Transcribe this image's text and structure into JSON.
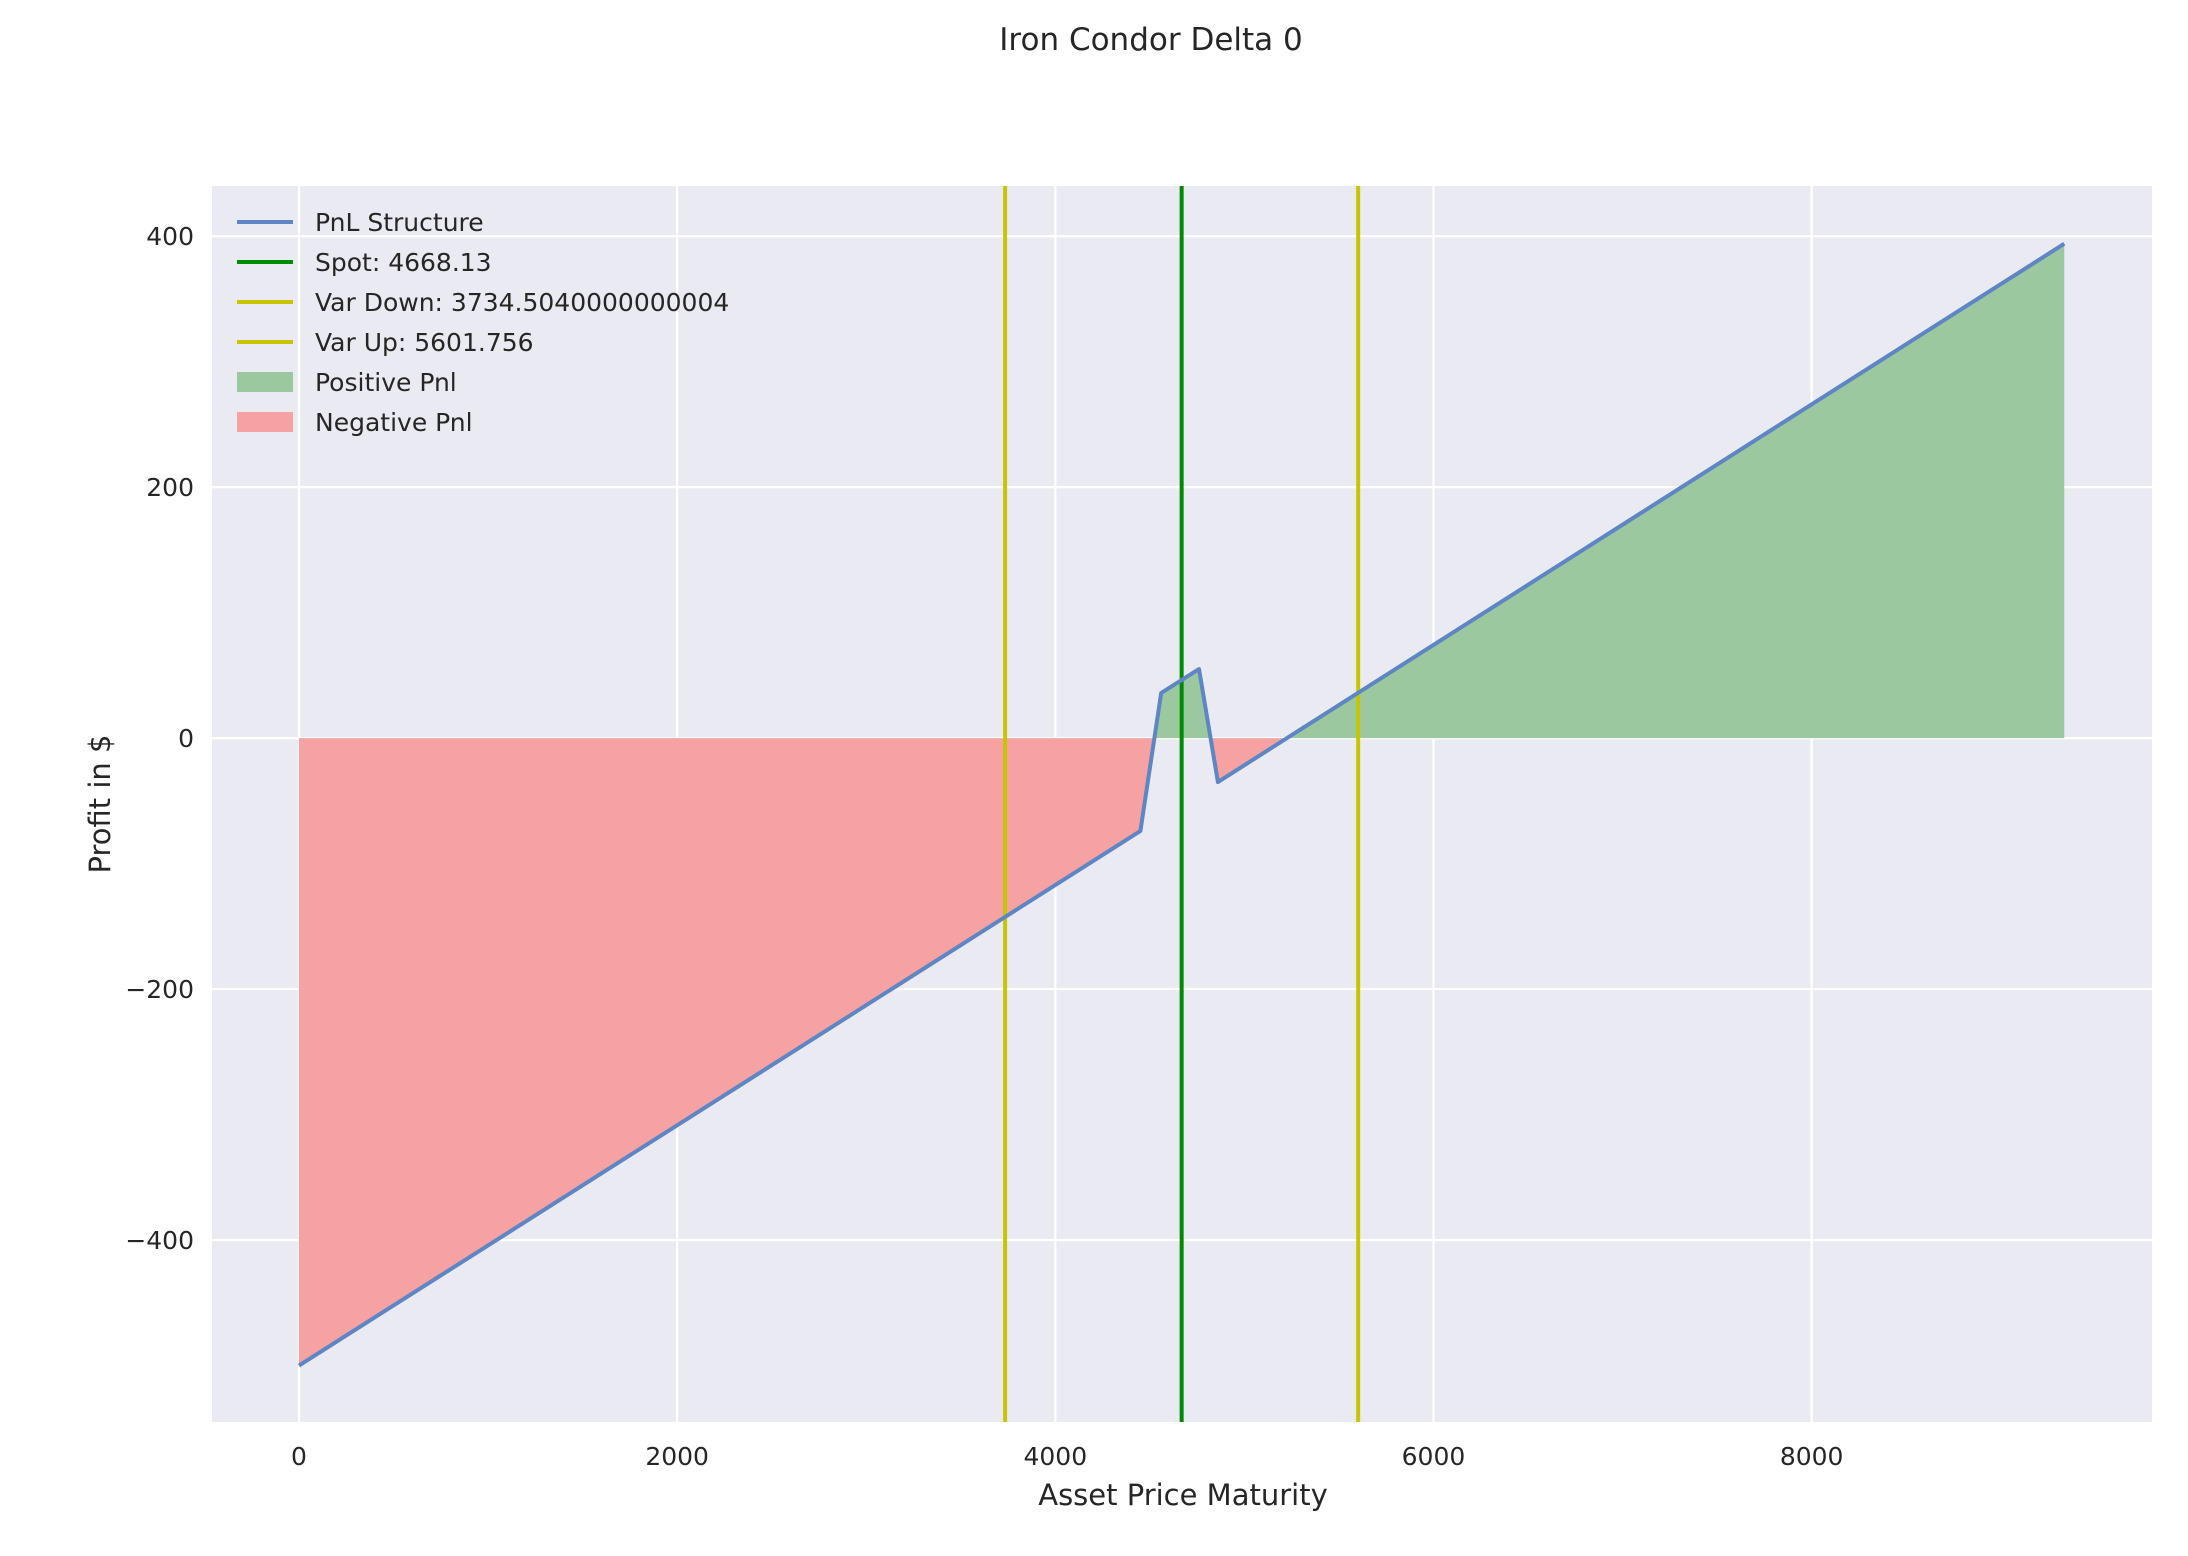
{
  "chart_data": {
    "type": "line",
    "title": "Iron Condor Delta 0",
    "xlabel": "Asset Price Maturity",
    "ylabel": "Profit in $",
    "xlim": [
      -460,
      9800
    ],
    "ylim": [
      -545,
      440
    ],
    "xticks": [
      0,
      2000,
      4000,
      6000,
      8000
    ],
    "yticks": [
      -400,
      -200,
      0,
      200,
      400
    ],
    "xtick_labels": [
      "0",
      "2000",
      "4000",
      "6000",
      "8000"
    ],
    "ytick_labels": [
      "−400",
      "−200",
      "0",
      "200",
      "400"
    ],
    "grid": true,
    "legend_position": "upper-left",
    "series": [
      {
        "name": "PnL Structure",
        "color": "#5e85c4",
        "x": [
          0,
          4450,
          4560,
          4760,
          4860,
          9336
        ],
        "y": [
          -500,
          -74,
          36,
          55,
          -35,
          394
        ]
      }
    ],
    "vlines": [
      {
        "name": "Spot: 4668.13",
        "x": 4668.13,
        "color": "#008a00"
      },
      {
        "name": "Var Down: 3734.5040000000004",
        "x": 3734.504,
        "color": "#c8c400"
      },
      {
        "name": "Var Up: 5601.756",
        "x": 5601.756,
        "color": "#c8c400"
      }
    ],
    "fills": [
      {
        "name": "Positive Pnl",
        "color": "#9cc89f"
      },
      {
        "name": "Negative Pnl",
        "color": "#f6a2a2"
      }
    ],
    "colors": {
      "background": "#eaeaf2",
      "grid": "#ffffff"
    }
  }
}
